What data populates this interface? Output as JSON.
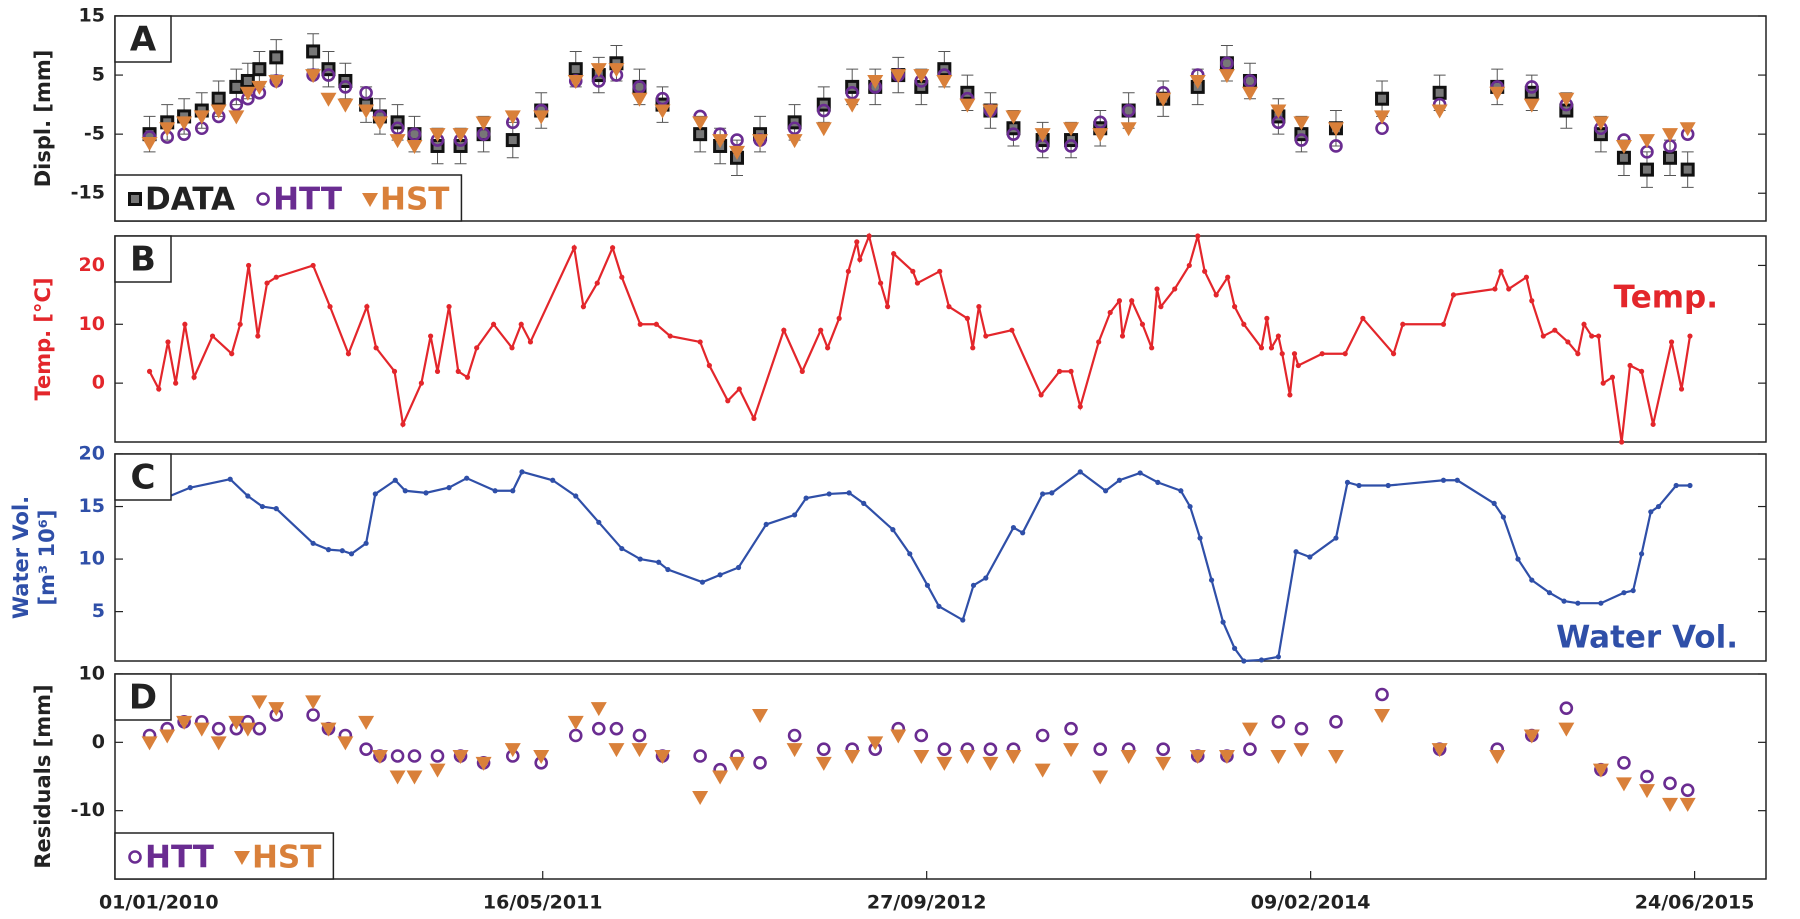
{
  "chart_data": [
    {
      "type": "scatter",
      "panel_label": "A",
      "ylabel": "Displ. [mm]",
      "label_color": "#222222",
      "ylim": [
        -19.7,
        15
      ],
      "yticks": [
        -15,
        -5,
        5,
        15
      ],
      "xlim": [
        "05/11/2009",
        "25/09/2015"
      ],
      "legend": "lower left",
      "x": [
        "20/12/2009",
        "12/01/2010",
        "03/02/2010",
        "26/02/2010",
        "20/03/2010",
        "12/04/2010",
        "27/04/2010",
        "12/05/2010",
        "03/06/2010",
        "21/07/2010",
        "10/08/2010",
        "01/09/2010",
        "28/09/2010",
        "16/10/2010",
        "08/11/2010",
        "30/11/2010",
        "30/12/2010",
        "29/01/2011",
        "28/02/2011",
        "07/04/2011",
        "14/05/2011",
        "28/06/2011",
        "28/07/2011",
        "20/08/2011",
        "19/09/2011",
        "19/10/2011",
        "07/12/2011",
        "02/01/2012",
        "24/01/2012",
        "23/02/2012",
        "08/04/2012",
        "16/05/2012",
        "22/06/2012",
        "22/07/2012",
        "21/08/2012",
        "20/09/2012",
        "20/10/2012",
        "19/11/2012",
        "19/12/2012",
        "18/01/2013",
        "25/02/2013",
        "03/04/2013",
        "11/05/2013",
        "17/06/2013",
        "01/08/2013",
        "15/09/2013",
        "23/10/2013",
        "22/11/2013",
        "29/12/2013",
        "28/01/2014",
        "14/03/2014",
        "13/05/2014",
        "27/07/2014",
        "10/10/2014",
        "24/11/2014",
        "08/01/2015",
        "22/02/2015",
        "24/03/2015",
        "23/04/2015",
        "23/05/2015",
        "15/06/2015"
      ],
      "series": [
        {
          "name": "DATA",
          "color": "#222222",
          "marker": "square",
          "error": 3,
          "values": [
            -5,
            -3,
            -2,
            -1,
            1,
            3,
            4,
            6,
            8,
            9,
            6,
            4,
            0,
            -2,
            -3,
            -5,
            -7,
            -7,
            -5,
            -6,
            -1,
            6,
            5,
            7,
            3,
            0,
            -5,
            -7,
            -9,
            -5,
            -3,
            0,
            3,
            3,
            5,
            3,
            6,
            2,
            -1,
            -4,
            -6,
            -6,
            -4,
            -1,
            1,
            3,
            7,
            4,
            -2,
            -5,
            -4,
            1,
            2,
            3,
            2,
            -1,
            -5,
            -9,
            -11,
            -9,
            -11
          ]
        },
        {
          "name": "HTT",
          "color": "#6a2c91",
          "marker": "circle",
          "values": [
            -5.5,
            -5.5,
            -5,
            -4,
            -2,
            0,
            1,
            2,
            4,
            5,
            5,
            3,
            2,
            -2,
            -4,
            -5,
            -6,
            -6,
            -5,
            -3,
            -1,
            4,
            4,
            5,
            3,
            1,
            -2,
            -5,
            -6,
            -6,
            -4,
            -1,
            2,
            3,
            5,
            4,
            5,
            1,
            -1,
            -5,
            -7,
            -7,
            -3,
            -1,
            2,
            5,
            7,
            4,
            -3,
            -6,
            -7,
            -4,
            0,
            3,
            3,
            0,
            -4,
            -6,
            -8,
            -7,
            -5
          ]
        },
        {
          "name": "HST",
          "color": "#d9803a",
          "marker": "triangle",
          "values": [
            -6.5,
            -4,
            -3,
            -2,
            -1,
            -2,
            2,
            3,
            4,
            5,
            1,
            0,
            -1,
            -3,
            -6,
            -7,
            -5,
            -5,
            -3,
            -2,
            -2,
            4,
            6,
            6,
            1,
            -1,
            -3,
            -6,
            -8,
            -6,
            -6,
            -4,
            0,
            4,
            5,
            5,
            4,
            0,
            -1,
            -2,
            -5,
            -4,
            -5,
            -4,
            1,
            4,
            5,
            2,
            -1,
            -3,
            -4,
            -2,
            -1,
            2,
            0,
            1,
            -3,
            -7,
            -6,
            -5,
            -4
          ]
        }
      ]
    },
    {
      "type": "line",
      "panel_label": "B",
      "ylabel": "Temp. [°C]",
      "label_color": "#e3262b",
      "annotation": "Temp.",
      "ylim": [
        -10,
        25
      ],
      "yticks": [
        0,
        10,
        20
      ],
      "xlim": [
        "05/11/2009",
        "25/09/2015"
      ],
      "color": "#e3262b",
      "x": [
        "20/12/2009",
        "01/01/2010",
        "13/01/2010",
        "23/01/2010",
        "04/02/2010",
        "16/02/2010",
        "12/03/2010",
        "06/04/2010",
        "17/04/2010",
        "28/04/2010",
        "10/05/2010",
        "22/05/2010",
        "03/06/2010",
        "21/07/2010",
        "12/08/2010",
        "05/09/2010",
        "29/09/2010",
        "11/10/2010",
        "04/11/2010",
        "15/11/2010",
        "09/12/2010",
        "21/12/2010",
        "30/12/2010",
        "14/01/2011",
        "26/01/2011",
        "07/02/2011",
        "19/02/2011",
        "13/03/2011",
        "06/04/2011",
        "18/04/2011",
        "30/04/2011",
        "26/06/2011",
        "08/07/2011",
        "26/07/2011",
        "15/08/2011",
        "27/08/2011",
        "20/09/2011",
        "11/10/2011",
        "29/10/2011",
        "07/12/2011",
        "19/12/2011",
        "12/01/2012",
        "27/01/2012",
        "15/02/2012",
        "25/03/2012",
        "18/04/2012",
        "12/05/2012",
        "21/05/2012",
        "05/06/2012",
        "17/06/2012",
        "28/06/2012",
        "02/07/2012",
        "14/07/2012",
        "29/07/2012",
        "07/08/2012",
        "15/08/2012",
        "09/09/2012",
        "15/09/2012",
        "14/10/2012",
        "26/10/2012",
        "19/11/2012",
        "26/11/2012",
        "04/12/2012",
        "13/12/2012",
        "16/01/2013",
        "23/02/2013",
        "19/03/2013",
        "03/04/2013",
        "15/04/2013",
        "09/05/2013",
        "24/05/2013",
        "05/06/2013",
        "09/06/2013",
        "21/06/2013",
        "05/07/2013",
        "17/07/2013",
        "24/07/2013",
        "29/07/2013",
        "16/08/2013",
        "04/09/2013",
        "15/09/2013",
        "24/09/2013",
        "09/10/2013",
        "24/10/2013",
        "02/11/2013",
        "14/11/2013",
        "07/12/2013",
        "14/12/2013",
        "20/12/2013",
        "29/12/2013",
        "03/01/2014",
        "13/01/2014",
        "19/01/2014",
        "24/01/2014",
        "24/02/2014",
        "26/03/2014",
        "18/04/2014",
        "28/05/2014",
        "09/06/2014",
        "01/08/2014",
        "14/08/2014",
        "07/10/2014",
        "15/10/2014",
        "25/10/2014",
        "17/11/2014",
        "24/11/2014",
        "09/12/2014",
        "24/12/2014",
        "10/01/2015",
        "23/01/2015",
        "31/01/2015",
        "10/02/2015",
        "19/02/2015",
        "25/02/2015",
        "09/03/2015",
        "21/03/2015",
        "01/04/2015",
        "16/04/2015",
        "01/05/2015",
        "25/05/2015",
        "07/06/2015",
        "18/06/2015"
      ],
      "values": [
        2,
        -1,
        7,
        0,
        10,
        1,
        8,
        5,
        10,
        20,
        8,
        17,
        18,
        20,
        13,
        5,
        13,
        6,
        2,
        -7,
        0,
        8,
        2,
        13,
        2,
        1,
        6,
        10,
        6,
        10,
        7,
        23,
        13,
        17,
        23,
        18,
        10,
        10,
        8,
        7,
        3,
        -3,
        -1,
        -6,
        9,
        2,
        9,
        6,
        11,
        19,
        24,
        21,
        25,
        17,
        13,
        22,
        19,
        17,
        19,
        13,
        11,
        6,
        13,
        8,
        9,
        -2,
        2,
        2,
        -4,
        7,
        12,
        14,
        8,
        14,
        10,
        6,
        16,
        13,
        16,
        20,
        25,
        19,
        15,
        18,
        13,
        10,
        6,
        11,
        6,
        8,
        5,
        -2,
        5,
        3,
        5,
        5,
        11,
        5,
        10,
        10,
        15,
        16,
        19,
        16,
        18,
        14,
        8,
        9,
        7,
        5,
        10,
        8,
        8,
        0,
        1,
        -10,
        3,
        2,
        -7,
        7,
        -1,
        8
      ]
    },
    {
      "type": "line",
      "panel_label": "C",
      "ylabel": [
        "Water Vol.",
        "[m³ 10⁶]"
      ],
      "label_color": "#2f4fa8",
      "annotation": "Water Vol.",
      "ylim": [
        0.3,
        20
      ],
      "yticks": [
        5,
        10,
        15,
        20
      ],
      "xlim": [
        "05/11/2009",
        "25/09/2015"
      ],
      "color": "#2f4fa8",
      "x": [
        "12/12/2009",
        "04/01/2010",
        "12/01/2010",
        "11/02/2010",
        "04/04/2010",
        "27/04/2010",
        "16/05/2010",
        "03/06/2010",
        "21/07/2010",
        "10/08/2010",
        "28/08/2010",
        "09/09/2010",
        "28/09/2010",
        "10/10/2010",
        "05/11/2010",
        "18/11/2010",
        "15/12/2010",
        "14/01/2011",
        "06/02/2011",
        "15/03/2011",
        "07/04/2011",
        "19/04/2011",
        "29/05/2011",
        "28/06/2011",
        "28/07/2011",
        "27/08/2011",
        "20/09/2011",
        "14/10/2011",
        "26/10/2011",
        "10/12/2011",
        "02/01/2012",
        "26/01/2012",
        "02/03/2012",
        "08/04/2012",
        "23/04/2012",
        "23/05/2012",
        "18/06/2012",
        "07/07/2012",
        "14/08/2012",
        "05/09/2012",
        "28/09/2012",
        "13/10/2012",
        "13/11/2012",
        "27/11/2012",
        "13/12/2012",
        "18/01/2013",
        "30/01/2013",
        "25/02/2013",
        "09/03/2013",
        "15/04/2013",
        "18/05/2013",
        "05/06/2013",
        "02/07/2013",
        "25/07/2013",
        "24/08/2013",
        "05/09/2013",
        "18/09/2013",
        "03/10/2013",
        "18/10/2013",
        "02/11/2013",
        "14/11/2013",
        "07/12/2013",
        "29/12/2013",
        "21/01/2014",
        "08/02/2014",
        "14/03/2014",
        "29/03/2014",
        "13/04/2014",
        "21/05/2014",
        "01/08/2014",
        "19/08/2014",
        "06/10/2014",
        "18/10/2014",
        "06/11/2014",
        "24/11/2014",
        "17/12/2014",
        "05/01/2015",
        "23/01/2015",
        "22/02/2015",
        "24/03/2015",
        "05/04/2015",
        "16/04/2015",
        "28/04/2015",
        "08/05/2015",
        "31/05/2015",
        "18/06/2015"
      ],
      "values": [
        17.8,
        16.3,
        15.9,
        16.8,
        17.6,
        16,
        15,
        14.8,
        11.5,
        10.9,
        10.8,
        10.5,
        11.5,
        16.2,
        17.5,
        16.5,
        16.3,
        16.8,
        17.7,
        16.5,
        16.5,
        18.3,
        17.5,
        16,
        13.5,
        11,
        10,
        9.7,
        9,
        7.8,
        8.5,
        9.2,
        13.3,
        14.2,
        15.8,
        16.2,
        16.3,
        15.3,
        12.8,
        10.5,
        7.5,
        5.5,
        4.2,
        7.5,
        8.2,
        13,
        12.5,
        16.2,
        16.3,
        18.3,
        16.5,
        17.5,
        18.2,
        17.3,
        16.5,
        15,
        12,
        8,
        4,
        1.5,
        0.3,
        0.4,
        0.7,
        10.7,
        10.2,
        12,
        17.3,
        17,
        17,
        17.5,
        17.5,
        15.3,
        14,
        10,
        8,
        6.8,
        6,
        5.8,
        5.8,
        6.8,
        7,
        10.5,
        14.5,
        15,
        17,
        17
      ]
    },
    {
      "type": "scatter",
      "panel_label": "D",
      "ylabel": "Residuals [mm]",
      "label_color": "#222222",
      "ylim": [
        -20,
        10
      ],
      "yticks": [
        -10,
        0,
        10
      ],
      "xlim": [
        "05/11/2009",
        "25/09/2015"
      ],
      "legend": "lower left",
      "xticks": [
        "01/01/2010",
        "16/05/2011",
        "27/09/2012",
        "09/02/2014",
        "24/06/2015"
      ],
      "x": [
        "20/12/2009",
        "12/01/2010",
        "03/02/2010",
        "26/02/2010",
        "20/03/2010",
        "12/04/2010",
        "27/04/2010",
        "12/05/2010",
        "03/06/2010",
        "21/07/2010",
        "10/08/2010",
        "01/09/2010",
        "28/09/2010",
        "16/10/2010",
        "08/11/2010",
        "30/11/2010",
        "30/12/2010",
        "29/01/2011",
        "28/02/2011",
        "07/04/2011",
        "14/05/2011",
        "28/06/2011",
        "28/07/2011",
        "20/08/2011",
        "19/09/2011",
        "19/10/2011",
        "07/12/2011",
        "02/01/2012",
        "24/01/2012",
        "23/02/2012",
        "08/04/2012",
        "16/05/2012",
        "22/06/2012",
        "22/07/2012",
        "21/08/2012",
        "20/09/2012",
        "20/10/2012",
        "19/11/2012",
        "19/12/2012",
        "18/01/2013",
        "25/02/2013",
        "03/04/2013",
        "11/05/2013",
        "17/06/2013",
        "01/08/2013",
        "15/09/2013",
        "23/10/2013",
        "22/11/2013",
        "29/12/2013",
        "28/01/2014",
        "14/03/2014",
        "13/05/2014",
        "27/07/2014",
        "10/10/2014",
        "24/11/2014",
        "08/01/2015",
        "22/02/2015",
        "24/03/2015",
        "23/04/2015",
        "23/05/2015",
        "15/06/2015"
      ],
      "series": [
        {
          "name": "HTT",
          "color": "#6a2c91",
          "marker": "circle",
          "values": [
            1,
            2,
            3,
            3,
            2,
            2,
            3,
            2,
            4,
            4,
            2,
            1,
            -1,
            -2,
            -2,
            -2,
            -2,
            -2,
            -3,
            -2,
            -3,
            1,
            2,
            2,
            1,
            -2,
            -2,
            -4,
            -2,
            -3,
            1,
            -1,
            -1,
            -1,
            2,
            1,
            -1,
            -1,
            -1,
            -1,
            1,
            2,
            -1,
            -1,
            -1,
            -2,
            -2,
            -1,
            3,
            2,
            3,
            7,
            -1,
            -1,
            1,
            5,
            -4,
            -3,
            -5,
            -6,
            -7
          ]
        },
        {
          "name": "HST",
          "color": "#d9803a",
          "marker": "triangle",
          "values": [
            0,
            1,
            3,
            2,
            0,
            3,
            2,
            6,
            5,
            6,
            2,
            0,
            3,
            -2,
            -5,
            -5,
            -4,
            -2,
            -3,
            -1,
            -2,
            3,
            5,
            -1,
            -1,
            -2,
            -8,
            -5,
            -3,
            4,
            -1,
            -3,
            -2,
            0,
            1,
            -2,
            -3,
            -2,
            -3,
            -2,
            -4,
            -1,
            -5,
            -2,
            -3,
            -2,
            -2,
            2,
            -2,
            -1,
            -2,
            4,
            -1,
            -2,
            1,
            2,
            -4,
            -6,
            -7,
            -9,
            -9
          ]
        }
      ]
    }
  ]
}
